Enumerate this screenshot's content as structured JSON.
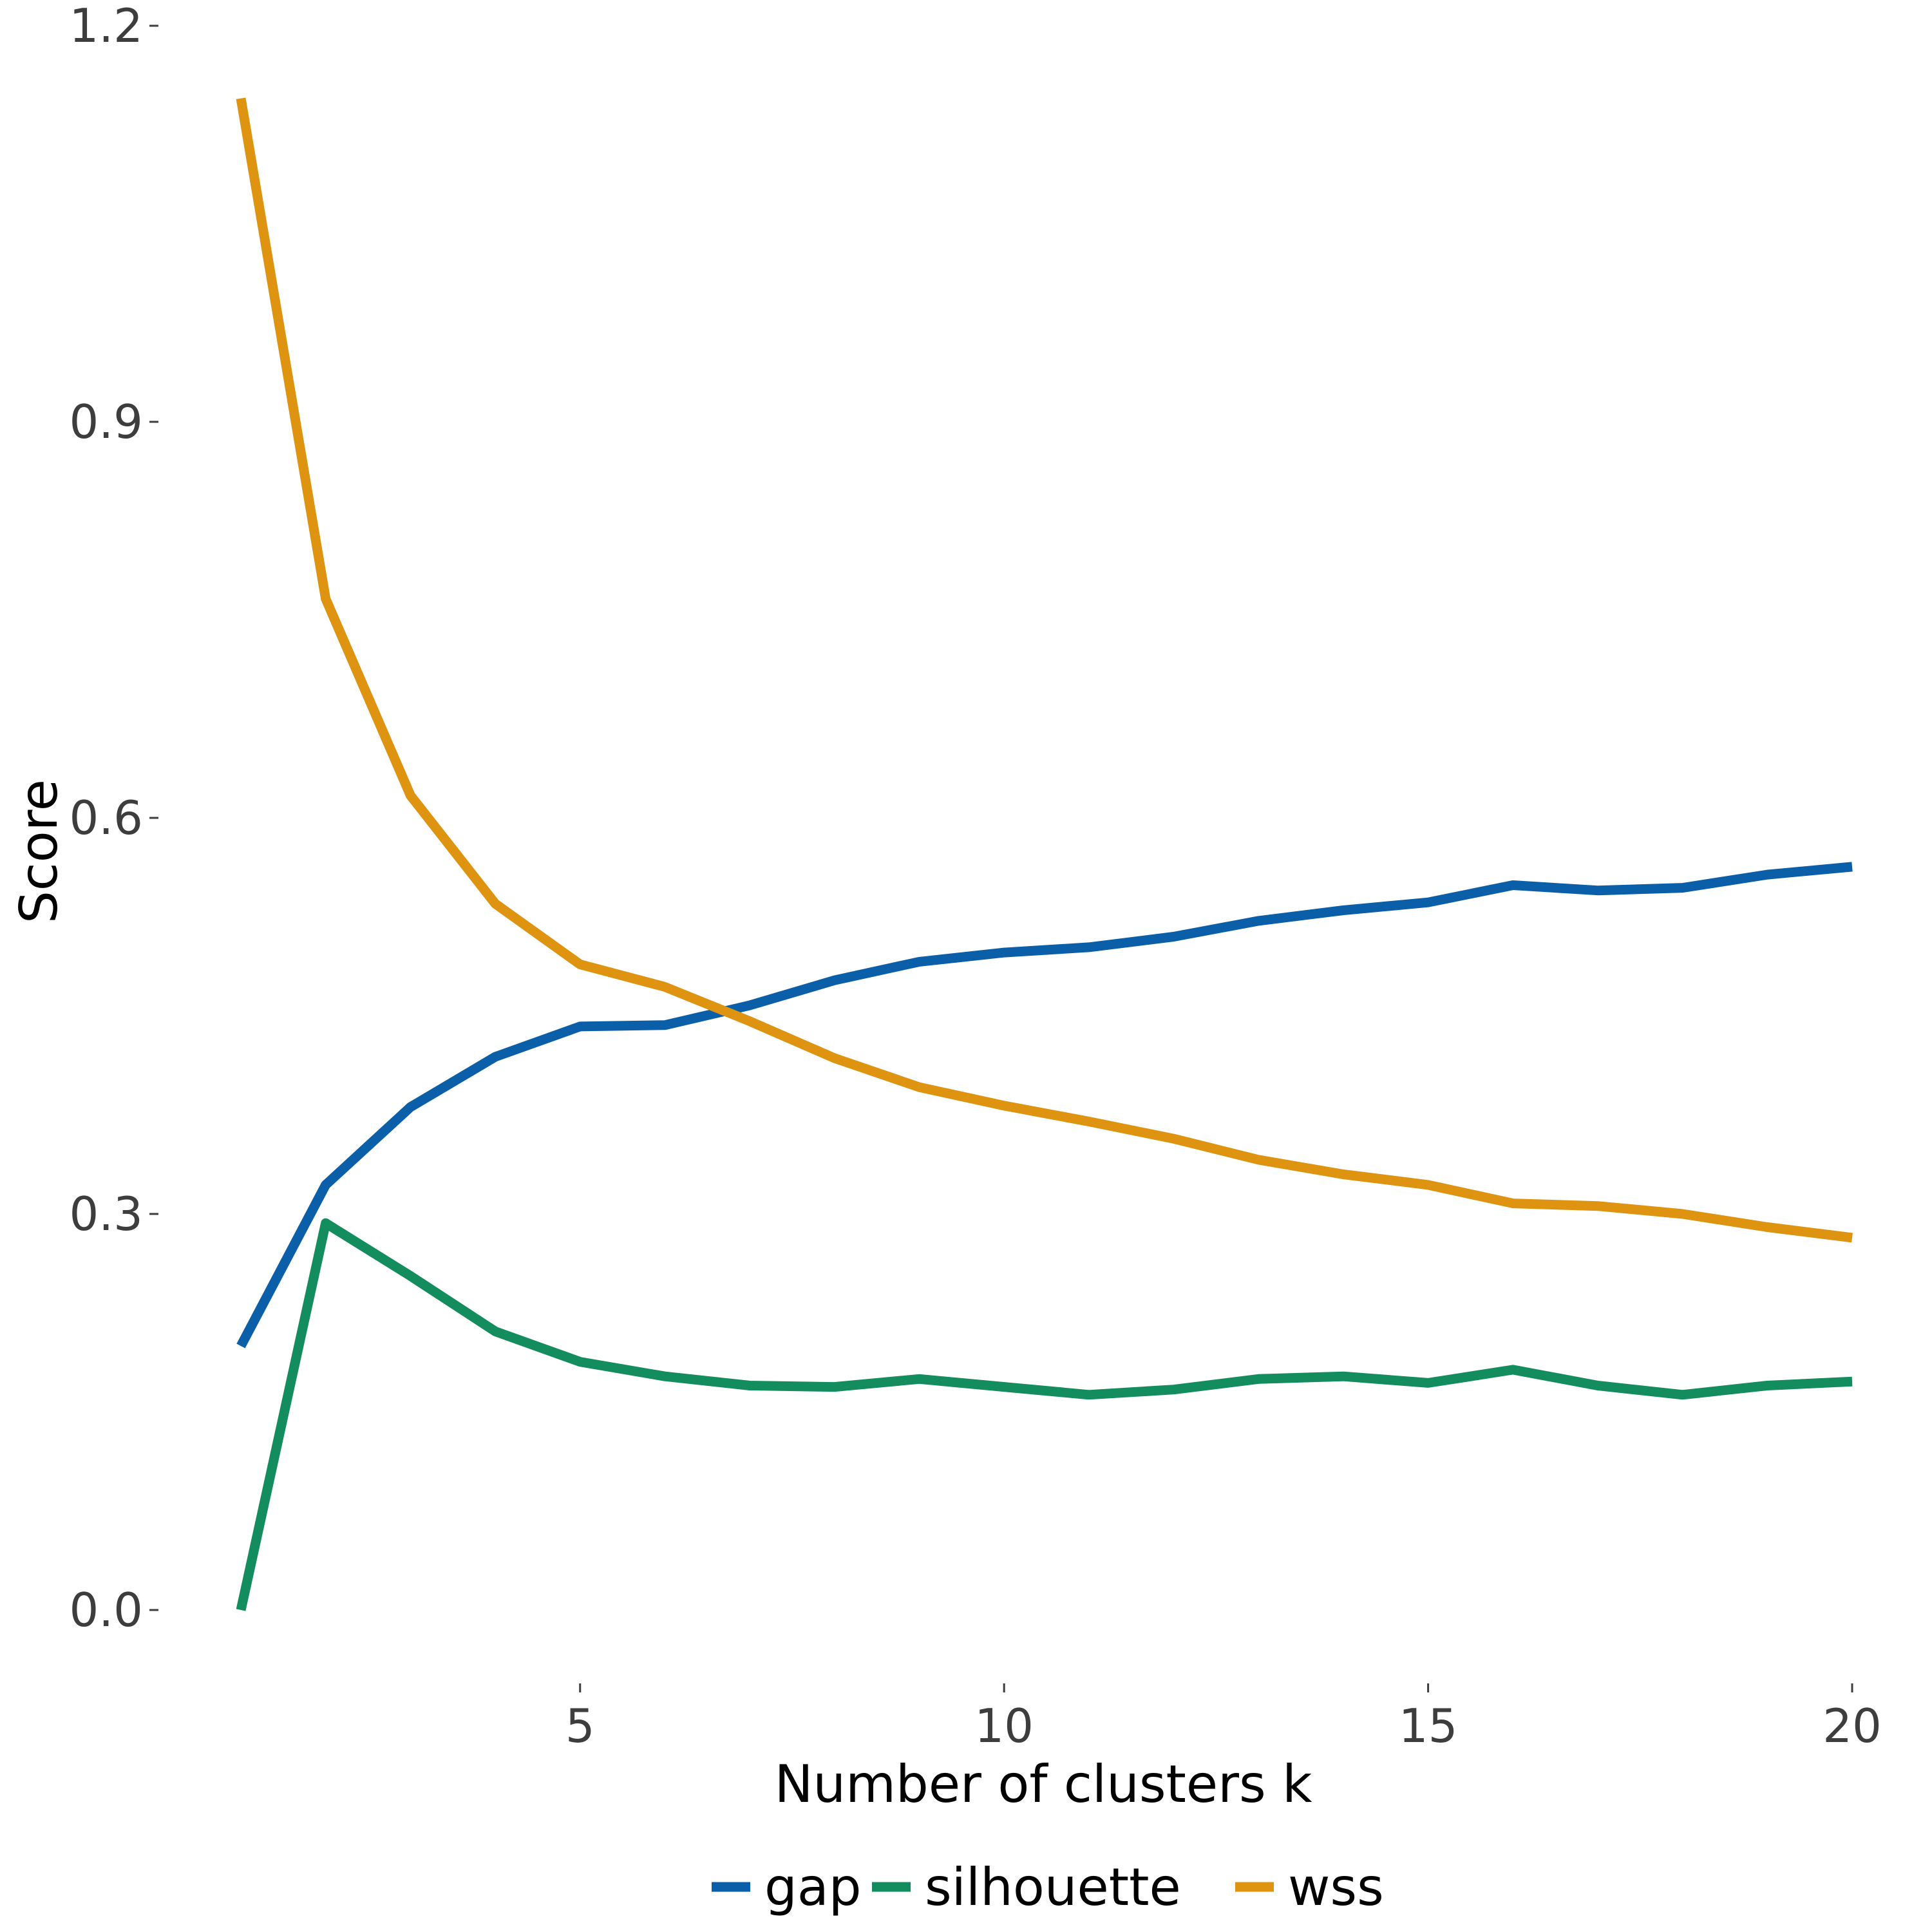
{
  "chart_data": {
    "type": "line",
    "title": "",
    "xlabel": "Number of clusters k",
    "ylabel": "Score",
    "xlim": [
      1,
      20
    ],
    "ylim": [
      0,
      1.2
    ],
    "x_ticks": [
      5,
      10,
      15,
      20
    ],
    "x_tick_labels": [
      "5",
      "10",
      "15",
      "20"
    ],
    "y_ticks": [
      0,
      0.3,
      0.6,
      0.9,
      1.2
    ],
    "y_tick_labels": [
      "0.0",
      "0.3",
      "0.6",
      "0.9",
      "1.2"
    ],
    "grid": false,
    "legend_position": "bottom",
    "x": [
      1,
      2,
      3,
      4,
      5,
      6,
      7,
      8,
      9,
      10,
      11,
      12,
      13,
      14,
      15,
      16,
      17,
      18,
      19,
      20
    ],
    "series": [
      {
        "name": "gap",
        "color": "#0b5ea8",
        "values": [
          0.2,
          0.322,
          0.381,
          0.419,
          0.442,
          0.443,
          0.458,
          0.477,
          0.491,
          0.498,
          0.502,
          0.51,
          0.522,
          0.53,
          0.536,
          0.549,
          0.545,
          0.547,
          0.557,
          0.563
        ]
      },
      {
        "name": "silhouette",
        "color": "#138d5d",
        "values": [
          0.0,
          0.293,
          0.253,
          0.211,
          0.188,
          0.177,
          0.17,
          0.169,
          0.175,
          0.169,
          0.163,
          0.167,
          0.175,
          0.177,
          0.172,
          0.182,
          0.17,
          0.163,
          0.17,
          0.173
        ]
      },
      {
        "name": "wss",
        "color": "#de9410",
        "values": [
          1.145,
          0.766,
          0.617,
          0.535,
          0.489,
          0.472,
          0.446,
          0.418,
          0.396,
          0.382,
          0.37,
          0.357,
          0.341,
          0.33,
          0.322,
          0.308,
          0.306,
          0.3,
          0.29,
          0.282
        ]
      }
    ]
  }
}
